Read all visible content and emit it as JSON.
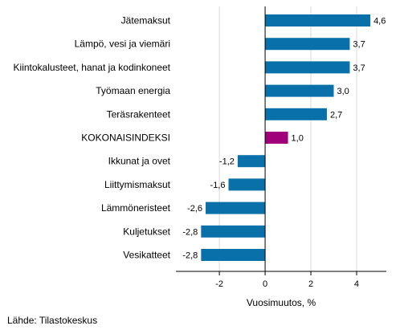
{
  "chart_data": {
    "type": "bar",
    "orientation": "horizontal",
    "categories": [
      "Jätemaksut",
      "Lämpö, vesi ja viemäri",
      "Kiintokalusteet, hanat ja kodinkoneet",
      "Työmaan energia",
      "Teräsrakenteet",
      "KOKONAISINDEKSI",
      "Ikkunat ja ovet",
      "Liittymismaksut",
      "Lämmöneristeet",
      "Kuljetukset",
      "Vesikatteet"
    ],
    "values": [
      4.6,
      3.7,
      3.7,
      3.0,
      2.7,
      1.0,
      -1.2,
      -1.6,
      -2.6,
      -2.8,
      -2.8
    ],
    "value_labels": [
      "4,6",
      "3,7",
      "3,7",
      "3,0",
      "2,7",
      "1,0",
      "-1,2",
      "-1,6",
      "-2,6",
      "-2,8",
      "-2,8"
    ],
    "highlight_category": "KOKONAISINDEKSI",
    "xlabel": "Vuosimuutos, %",
    "xlim": [
      -3.9,
      5.3
    ],
    "xticks": [
      -2,
      0,
      2,
      4
    ],
    "xtick_labels": [
      "-2",
      "0",
      "2",
      "4"
    ],
    "grid": "vertical",
    "colors": {
      "bar": "#0a70a9",
      "highlight": "#a0007a",
      "grid": "#d9d9d9",
      "axis": "#000000"
    }
  },
  "source": "Lähde: Tilastokeskus"
}
